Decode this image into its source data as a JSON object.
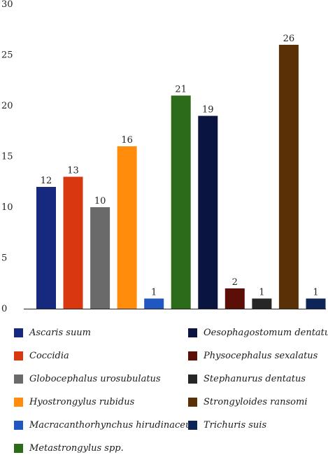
{
  "chart_data": {
    "type": "bar",
    "categories": [
      "Ascaris suum",
      "Coccidia",
      "Globocephalus urosubulatus",
      "Hyostrongylus rubidus",
      "Macracanthorhynchus hirudinaceus",
      "Metastrongylus spp.",
      "Oesophagostomum dentatum",
      "Physocephalus sexalatus",
      "Stephanurus dentatus",
      "Strongyloides ransomi",
      "Trichuris suis"
    ],
    "values": [
      12,
      13,
      10,
      16,
      1,
      21,
      19,
      2,
      1,
      26,
      1
    ],
    "colors": [
      "#17297f",
      "#d9370f",
      "#6a6a6a",
      "#ff8c0a",
      "#2157c0",
      "#2c6b1a",
      "#0a1441",
      "#5c0f06",
      "#262626",
      "#5a3106",
      "#0e2557"
    ],
    "ylim": [
      0,
      30
    ],
    "yticks": [
      0,
      5,
      10,
      15,
      20,
      25,
      30
    ],
    "data_labels": true,
    "legend_position": "bottom",
    "grid": false
  }
}
